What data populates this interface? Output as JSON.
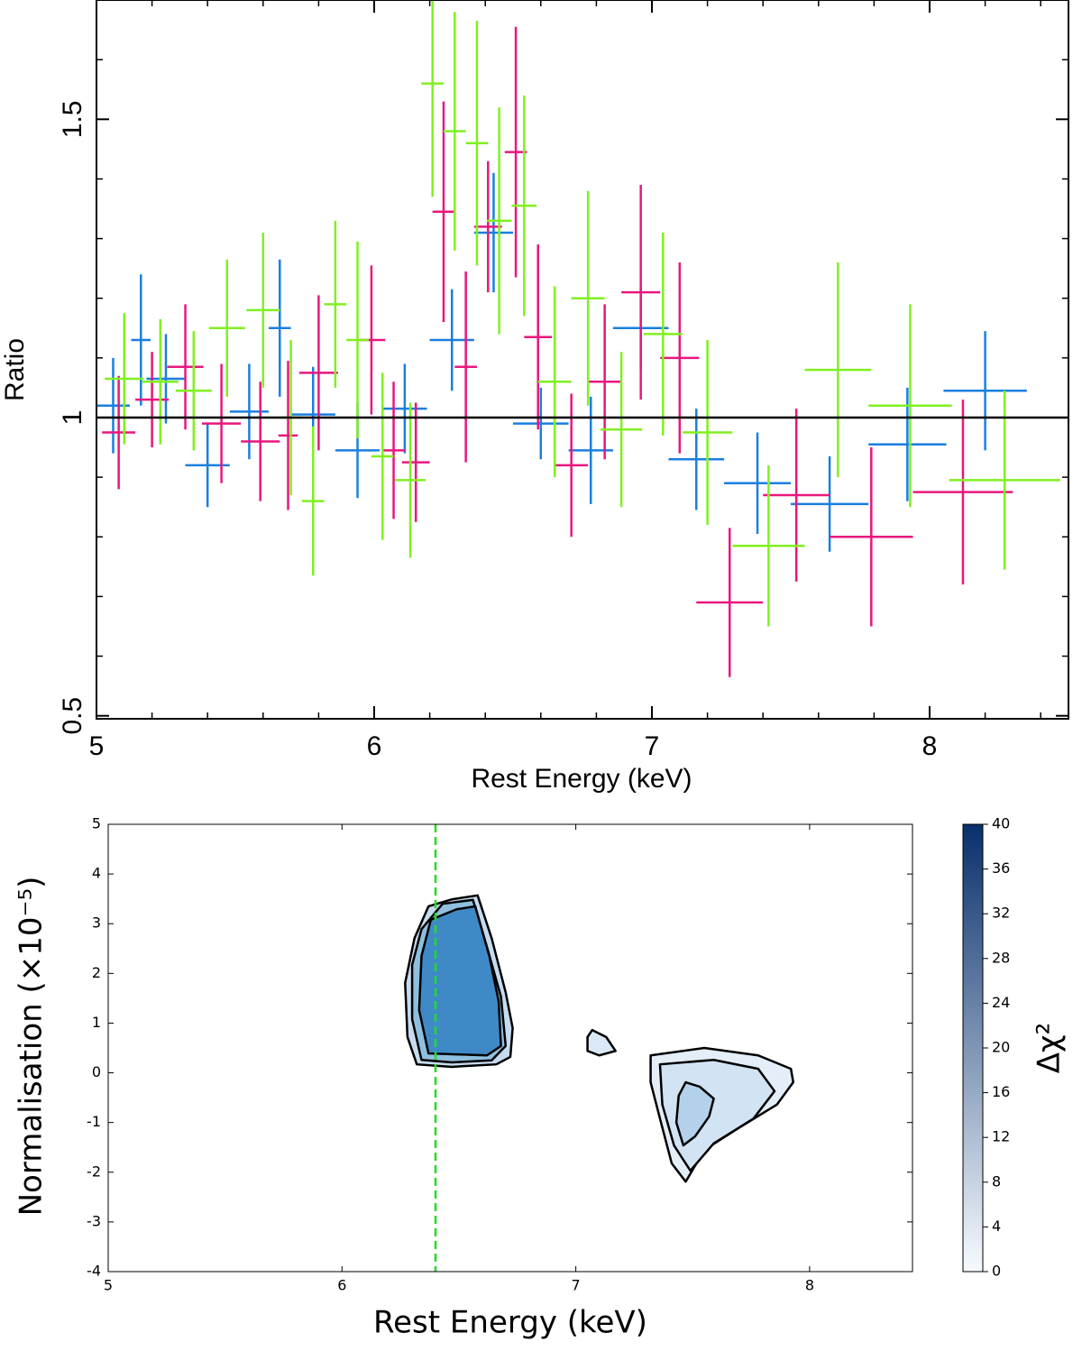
{
  "chart_data": [
    {
      "type": "errorbar",
      "xlabel": "Rest Energy (keV)",
      "ylabel": "Ratio",
      "xlim": [
        5,
        8.5
      ],
      "ylim": [
        0.495,
        1.7
      ],
      "xticks": [
        5,
        6,
        7,
        8
      ],
      "xticks_minor": [
        5.2,
        5.4,
        5.6,
        5.8,
        6.2,
        6.4,
        6.6,
        6.8,
        7.2,
        7.4,
        7.6,
        7.8,
        8.2,
        8.4
      ],
      "yticks": [
        {
          "value": 0.5,
          "label": "0.5"
        },
        1,
        {
          "value": 1.5,
          "label": "1.5"
        }
      ],
      "yticks_minor": [
        0.6,
        0.7,
        0.8,
        0.9,
        1.1,
        1.2,
        1.3,
        1.4,
        1.6
      ],
      "reference_line": 1,
      "series": [
        {
          "color": "#1a7fe0",
          "x": [
            5.06,
            5.16,
            5.25,
            5.4,
            5.55,
            5.66,
            5.78,
            5.94,
            6.11,
            6.28,
            6.43,
            6.6,
            6.78,
            6.96,
            7.16,
            7.38,
            7.64,
            7.92,
            8.2
          ],
          "xerr": [
            0.06,
            0.035,
            0.07,
            0.08,
            0.07,
            0.04,
            0.08,
            0.08,
            0.08,
            0.08,
            0.07,
            0.1,
            0.08,
            0.1,
            0.1,
            0.12,
            0.14,
            0.14,
            0.15
          ],
          "values": [
            1.02,
            1.13,
            1.065,
            0.92,
            1.01,
            1.15,
            1.005,
            0.945,
            1.015,
            1.13,
            1.31,
            0.99,
            0.945,
            1.15,
            0.93,
            0.89,
            0.855,
            0.955,
            1.045
          ],
          "yerr": [
            0.08,
            0.11,
            0.075,
            0.07,
            0.08,
            0.115,
            0.08,
            0.08,
            0.075,
            0.085,
            0.1,
            0.06,
            0.09,
            0.07,
            0.085,
            0.085,
            0.08,
            0.095,
            0.1
          ]
        },
        {
          "color": "#e8177f",
          "x": [
            5.08,
            5.2,
            5.32,
            5.45,
            5.59,
            5.69,
            5.8,
            5.99,
            6.07,
            6.15,
            6.25,
            6.33,
            6.41,
            6.51,
            6.59,
            6.71,
            6.83,
            6.96,
            7.1,
            7.28,
            7.52,
            7.79,
            8.12
          ],
          "xerr": [
            0.06,
            0.06,
            0.065,
            0.07,
            0.07,
            0.035,
            0.07,
            0.05,
            0.04,
            0.05,
            0.04,
            0.04,
            0.05,
            0.04,
            0.05,
            0.06,
            0.06,
            0.07,
            0.07,
            0.12,
            0.12,
            0.15,
            0.18
          ],
          "values": [
            0.975,
            1.03,
            1.085,
            0.99,
            0.96,
            0.97,
            1.075,
            1.13,
            0.945,
            0.925,
            1.345,
            1.085,
            1.32,
            1.445,
            1.135,
            0.92,
            1.06,
            1.21,
            1.1,
            0.69,
            0.87,
            0.8,
            0.875
          ],
          "yerr": [
            0.095,
            0.08,
            0.105,
            0.1,
            0.1,
            0.125,
            0.13,
            0.125,
            0.115,
            0.1,
            0.185,
            0.16,
            0.11,
            0.21,
            0.155,
            0.12,
            0.13,
            0.18,
            0.16,
            0.125,
            0.145,
            0.15,
            0.155
          ]
        },
        {
          "color": "#80f020",
          "x": [
            5.1,
            5.23,
            5.35,
            5.47,
            5.6,
            5.7,
            5.78,
            5.86,
            5.94,
            6.03,
            6.13,
            6.21,
            6.29,
            6.37,
            6.45,
            6.54,
            6.65,
            6.77,
            6.89,
            7.04,
            7.2,
            7.42,
            7.67,
            7.93,
            8.27
          ],
          "xerr": [
            0.07,
            0.065,
            0.065,
            0.065,
            0.06,
            0.04,
            0.04,
            0.04,
            0.04,
            0.04,
            0.055,
            0.04,
            0.04,
            0.04,
            0.045,
            0.045,
            0.06,
            0.06,
            0.075,
            0.07,
            0.09,
            0.13,
            0.12,
            0.15,
            0.2
          ],
          "values": [
            1.065,
            1.06,
            1.045,
            1.15,
            1.18,
            1.0,
            0.86,
            1.19,
            1.13,
            0.935,
            0.895,
            1.56,
            1.48,
            1.46,
            1.33,
            1.355,
            1.06,
            1.2,
            0.98,
            1.14,
            0.975,
            0.785,
            1.08,
            1.02,
            0.895
          ],
          "yerr": [
            0.11,
            0.105,
            0.1,
            0.115,
            0.13,
            0.13,
            0.125,
            0.14,
            0.165,
            0.14,
            0.13,
            0.19,
            0.2,
            0.205,
            0.19,
            0.185,
            0.16,
            0.18,
            0.13,
            0.17,
            0.155,
            0.135,
            0.18,
            0.17,
            0.15
          ]
        }
      ]
    },
    {
      "type": "contour",
      "xlabel": "Rest Energy (keV)",
      "ylabel": "Normalisation (×10⁻⁵)",
      "xlim": [
        5,
        8.44
      ],
      "ylim": [
        -4,
        5
      ],
      "xticks": [
        5,
        6,
        7,
        8
      ],
      "yticks": [
        -4,
        -3,
        -2,
        -1,
        0,
        1,
        2,
        3,
        4,
        5
      ],
      "vline": {
        "x": 6.4,
        "color": "#22dd22"
      },
      "colorbar": {
        "label": "Δχ²",
        "lim": [
          0,
          40
        ],
        "ticks": [
          0,
          4,
          8,
          12,
          16,
          20,
          24,
          28,
          32,
          36,
          40
        ],
        "colors": [
          "#f7fbff",
          "#08306b"
        ]
      },
      "contours": [
        {
          "fill": "#c6dbef",
          "x": [
            6.32,
            6.28,
            6.27,
            6.31,
            6.37,
            6.47,
            6.58,
            6.64,
            6.7,
            6.73,
            6.72,
            6.66,
            6.47
          ],
          "y": [
            0.17,
            0.72,
            1.81,
            2.71,
            3.35,
            3.49,
            3.57,
            2.71,
            1.62,
            0.9,
            0.32,
            0.17,
            0.12
          ]
        },
        {
          "fill": "#8fbfdf",
          "x": [
            6.34,
            6.3,
            6.3,
            6.34,
            6.43,
            6.56,
            6.62,
            6.68,
            6.7,
            6.64,
            6.47
          ],
          "y": [
            0.26,
            1.08,
            2.17,
            2.89,
            3.4,
            3.48,
            2.53,
            1.53,
            0.54,
            0.25,
            0.21
          ]
        },
        {
          "fill": "#3f8ac6",
          "x": [
            6.37,
            6.33,
            6.34,
            6.38,
            6.49,
            6.57,
            6.63,
            6.67,
            6.68,
            6.62
          ],
          "y": [
            0.39,
            1.26,
            2.35,
            3.08,
            3.29,
            3.35,
            2.35,
            1.44,
            0.54,
            0.35
          ]
        },
        {
          "fill": "#dbe9f6",
          "x": [
            7.05,
            7.05,
            7.1,
            7.17,
            7.13,
            7.07
          ],
          "y": [
            0.72,
            0.44,
            0.35,
            0.44,
            0.72,
            0.86
          ]
        },
        {
          "fill": "#e4eef8",
          "x": [
            7.32,
            7.55,
            7.78,
            7.92,
            7.93,
            7.86,
            7.7,
            7.55,
            7.47,
            7.41,
            7.36,
            7.32
          ],
          "y": [
            0.35,
            0.5,
            0.35,
            0.08,
            -0.19,
            -0.64,
            -1.1,
            -1.55,
            -2.19,
            -1.82,
            -0.92,
            -0.19
          ]
        },
        {
          "fill": "#d2e3f3",
          "x": [
            7.36,
            7.59,
            7.78,
            7.85,
            7.76,
            7.59,
            7.49,
            7.42,
            7.37
          ],
          "y": [
            0.17,
            0.26,
            0.08,
            -0.37,
            -0.92,
            -1.42,
            -1.97,
            -1.46,
            -0.64
          ]
        },
        {
          "fill": "#b3d1ea",
          "x": [
            7.47,
            7.53,
            7.59,
            7.57,
            7.51,
            7.46,
            7.43,
            7.44
          ],
          "y": [
            -0.19,
            -0.28,
            -0.52,
            -0.88,
            -1.28,
            -1.46,
            -1.0,
            -0.46
          ]
        }
      ]
    }
  ]
}
